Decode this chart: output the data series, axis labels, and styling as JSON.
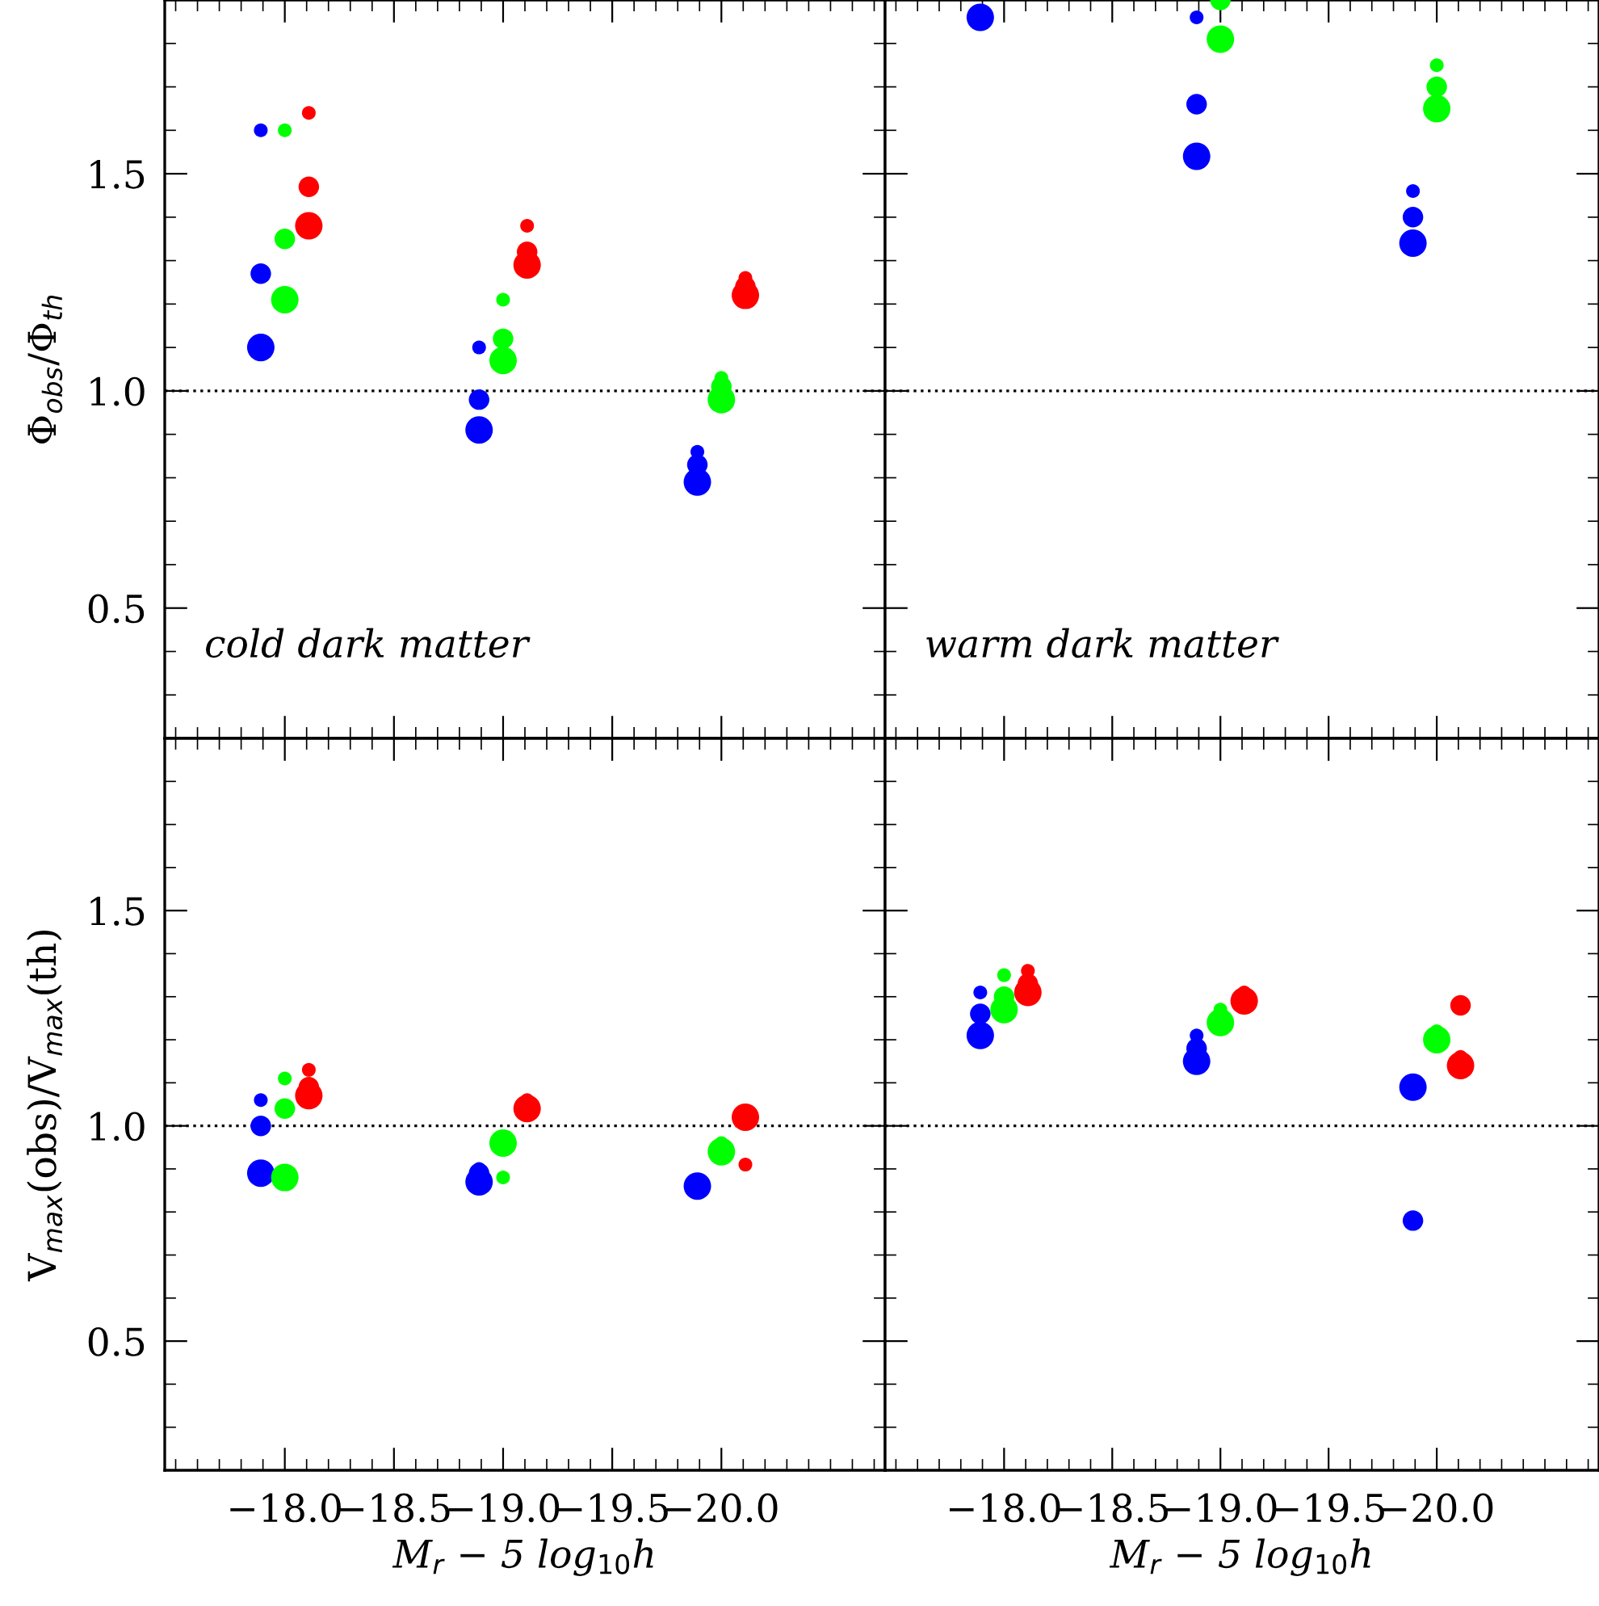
{
  "chart_data": [
    {
      "type": "bubble",
      "ylabel": "Φ$_{obs}$/Φ$_{th}$",
      "annotations": [
        "cold dark matter"
      ],
      "tick_labels": "y",
      "marker": "circle",
      "xlim": [
        -17.45,
        -20.75
      ],
      "xticks": [
        {
          "value": -18.0,
          "label": null
        },
        {
          "value": -18.5,
          "label": null
        },
        {
          "value": -19.0,
          "label": null
        },
        {
          "value": -19.5,
          "label": null
        },
        {
          "value": -20.0,
          "label": null
        }
      ],
      "ylim": [
        0.2,
        1.9
      ],
      "yticks": [
        {
          "value": 0.5,
          "label": "0.5"
        },
        {
          "value": 1.0,
          "label": "1.0"
        },
        {
          "value": 1.5,
          "label": "1.5"
        }
      ],
      "ref_lines": [
        {
          "axis": "y",
          "value": 1.0,
          "color": "#000000",
          "line_style": "dotted"
        }
      ],
      "series": [
        {
          "color": "#0000ff",
          "x": [
            -17.89,
            -17.89,
            -17.89,
            -18.89,
            -18.89,
            -18.89,
            -19.89,
            -19.89,
            -19.89
          ],
          "values": [
            1.6,
            1.27,
            1.1,
            1.1,
            0.98,
            0.91,
            0.86,
            0.83,
            0.79
          ],
          "sizes": [
            0.25,
            0.56,
            1,
            0.25,
            0.56,
            1,
            0.25,
            0.56,
            1
          ]
        },
        {
          "color": "#00ff00",
          "x": [
            -18.0,
            -18.0,
            -18.0,
            -19.0,
            -19.0,
            -19.0,
            -20.0,
            -20.0,
            -20.0
          ],
          "values": [
            1.6,
            1.35,
            1.21,
            1.21,
            1.12,
            1.07,
            1.03,
            1.01,
            0.98
          ],
          "sizes": [
            0.25,
            0.56,
            1,
            0.25,
            0.56,
            1,
            0.25,
            0.56,
            1
          ]
        },
        {
          "color": "#ff0000",
          "x": [
            -18.11,
            -18.11,
            -18.11,
            -19.11,
            -19.11,
            -19.11,
            -20.11,
            -20.11,
            -20.11
          ],
          "values": [
            1.64,
            1.47,
            1.38,
            1.38,
            1.32,
            1.29,
            1.26,
            1.24,
            1.22
          ],
          "sizes": [
            0.25,
            0.56,
            1,
            0.25,
            0.56,
            1,
            0.25,
            0.56,
            1
          ]
        }
      ]
    },
    {
      "type": "bubble",
      "annotations": [
        "warm dark matter"
      ],
      "tick_labels": false,
      "marker": "circle",
      "xlim": [
        -17.45,
        -20.75
      ],
      "xticks": [
        {
          "value": -18.0,
          "label": null
        },
        {
          "value": -18.5,
          "label": null
        },
        {
          "value": -19.0,
          "label": null
        },
        {
          "value": -19.5,
          "label": null
        },
        {
          "value": -20.0,
          "label": null
        }
      ],
      "ylim": [
        0.2,
        1.9
      ],
      "yticks": [
        {
          "value": 0.5,
          "label": null
        },
        {
          "value": 1.0,
          "label": null
        },
        {
          "value": 1.5,
          "label": null
        }
      ],
      "ref_lines": [
        {
          "axis": "y",
          "value": 1.0,
          "color": "#000000",
          "line_style": "dotted"
        }
      ],
      "series": [
        {
          "color": "#0000ff",
          "x": [
            -17.89,
            -18.89,
            -18.89,
            -18.89,
            -19.89,
            -19.89,
            -19.89
          ],
          "values": [
            1.86,
            1.86,
            1.66,
            1.54,
            1.46,
            1.4,
            1.34
          ],
          "sizes": [
            1,
            0.25,
            0.56,
            1,
            0.25,
            0.56,
            1
          ]
        },
        {
          "color": "#00ff00",
          "x": [
            -19.0,
            -19.0,
            -20.0,
            -20.0,
            -20.0
          ],
          "values": [
            1.9,
            1.81,
            1.75,
            1.7,
            1.65
          ],
          "sizes": [
            0.56,
            1,
            0.25,
            0.56,
            1
          ]
        }
      ]
    },
    {
      "type": "bubble",
      "ylabel": "V$_{max}$(obs)/V$_{max}$(th)",
      "xlabel": "M$_{r}$ − 5 log$_{10}$h",
      "marker": "circle",
      "xlim": [
        -17.45,
        -20.75
      ],
      "xticks": [
        {
          "value": -18.0,
          "label": "−18.0"
        },
        {
          "value": -18.5,
          "label": "−18.5"
        },
        {
          "value": -19.0,
          "label": "−19.0"
        },
        {
          "value": -19.5,
          "label": "−19.5"
        },
        {
          "value": -20.0,
          "label": "−20.0"
        }
      ],
      "ylim": [
        0.2,
        1.9
      ],
      "yticks": [
        {
          "value": 0.5,
          "label": "0.5"
        },
        {
          "value": 1.0,
          "label": "1.0"
        },
        {
          "value": 1.5,
          "label": "1.5"
        }
      ],
      "ref_lines": [
        {
          "axis": "y",
          "value": 1.0,
          "color": "#000000",
          "line_style": "dotted"
        }
      ],
      "series": [
        {
          "color": "#0000ff",
          "x": [
            -17.89,
            -17.89,
            -17.89,
            -18.89,
            -18.89,
            -18.89,
            -19.89
          ],
          "values": [
            1.06,
            1.0,
            0.89,
            0.9,
            0.89,
            0.87,
            0.86
          ],
          "sizes": [
            0.25,
            0.56,
            1,
            0.25,
            0.56,
            1,
            1
          ]
        },
        {
          "color": "#00ff00",
          "x": [
            -18.0,
            -18.0,
            -18.0,
            -19.0,
            -19.0,
            -20.0,
            -20.0
          ],
          "values": [
            1.11,
            1.04,
            0.88,
            0.88,
            0.96,
            0.96,
            0.94
          ],
          "sizes": [
            0.25,
            0.56,
            1,
            0.25,
            1,
            0.25,
            1
          ]
        },
        {
          "color": "#ff0000",
          "x": [
            -18.11,
            -18.11,
            -18.11,
            -19.11,
            -19.11,
            -20.11,
            -20.11
          ],
          "values": [
            1.13,
            1.09,
            1.07,
            1.06,
            1.04,
            0.91,
            1.02
          ],
          "sizes": [
            0.25,
            0.56,
            1,
            0.25,
            1,
            0.25,
            1
          ]
        }
      ]
    },
    {
      "type": "bubble",
      "xlabel": "M$_{r}$ − 5 log$_{10}$h",
      "tick_labels": "x",
      "marker": "circle",
      "xlim": [
        -17.45,
        -20.75
      ],
      "xticks": [
        {
          "value": -18.0,
          "label": "−18.0"
        },
        {
          "value": -18.5,
          "label": "−18.5"
        },
        {
          "value": -19.0,
          "label": "−19.0"
        },
        {
          "value": -19.5,
          "label": "−19.5"
        },
        {
          "value": -20.0,
          "label": "−20.0"
        }
      ],
      "ylim": [
        0.2,
        1.9
      ],
      "yticks": [
        {
          "value": 0.5,
          "label": null
        },
        {
          "value": 1.0,
          "label": null
        },
        {
          "value": 1.5,
          "label": null
        }
      ],
      "ref_lines": [
        {
          "axis": "y",
          "value": 1.0,
          "color": "#000000",
          "line_style": "dotted"
        }
      ],
      "series": [
        {
          "color": "#0000ff",
          "x": [
            -17.89,
            -17.89,
            -17.89,
            -18.89,
            -18.89,
            -18.89,
            -19.89,
            -19.89
          ],
          "values": [
            1.31,
            1.26,
            1.21,
            1.21,
            1.18,
            1.15,
            0.78,
            1.09
          ],
          "sizes": [
            0.25,
            0.56,
            1,
            0.25,
            0.56,
            1,
            0.56,
            1
          ]
        },
        {
          "color": "#00ff00",
          "x": [
            -18.0,
            -18.0,
            -18.0,
            -19.0,
            -19.0,
            -20.0,
            -20.0
          ],
          "values": [
            1.35,
            1.3,
            1.27,
            1.27,
            1.24,
            1.22,
            1.2
          ],
          "sizes": [
            0.25,
            0.56,
            1,
            0.25,
            1,
            0.25,
            1
          ]
        },
        {
          "color": "#ff0000",
          "x": [
            -18.11,
            -18.11,
            -18.11,
            -19.11,
            -19.11,
            -20.11,
            -20.11,
            -20.11
          ],
          "values": [
            1.36,
            1.33,
            1.31,
            1.31,
            1.29,
            1.16,
            1.28,
            1.14
          ],
          "sizes": [
            0.25,
            0.56,
            1,
            0.25,
            1,
            0.25,
            0.56,
            1
          ]
        }
      ]
    }
  ]
}
